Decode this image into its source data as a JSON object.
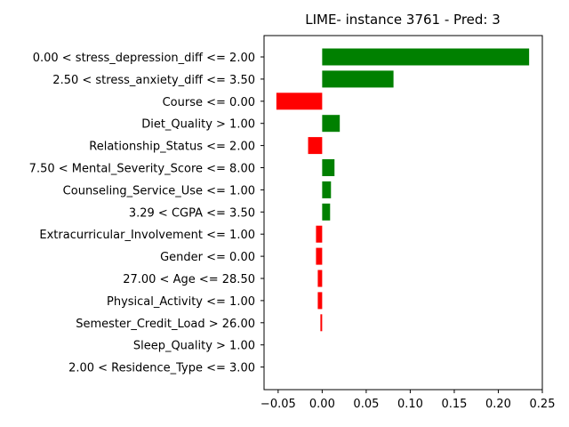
{
  "chart_data": {
    "type": "bar",
    "orientation": "horizontal",
    "title": "LIME- instance 3761 - Pred: 3",
    "xlabel": "",
    "ylabel": "",
    "xlim": [
      -0.066,
      0.25
    ],
    "xticks": [
      -0.05,
      0.0,
      0.05,
      0.1,
      0.15,
      0.2,
      0.25
    ],
    "xtick_labels": [
      "−0.05",
      "0.00",
      "0.05",
      "0.10",
      "0.15",
      "0.20",
      "0.25"
    ],
    "grid": false,
    "positive_color": "#008000",
    "negative_color": "#ff0000",
    "categories": [
      "0.00 < stress_depression_diff <= 2.00",
      "2.50 < stress_anxiety_diff <= 3.50",
      "Course <= 0.00",
      "Diet_Quality > 1.00",
      "Relationship_Status <= 2.00",
      "7.50 < Mental_Severity_Score <= 8.00",
      "Counseling_Service_Use <= 1.00",
      "3.29 < CGPA <= 3.50",
      "Extracurricular_Involvement <= 1.00",
      "Gender <= 0.00",
      "27.00 < Age <= 28.50",
      "Physical_Activity <= 1.00",
      "Semester_Credit_Load > 26.00",
      "Sleep_Quality > 1.00",
      "2.00 < Residence_Type <= 3.00"
    ],
    "values": [
      0.235,
      0.081,
      -0.052,
      0.02,
      -0.016,
      0.014,
      0.01,
      0.009,
      -0.007,
      -0.007,
      -0.005,
      -0.005,
      -0.002,
      0.0,
      0.0
    ]
  }
}
